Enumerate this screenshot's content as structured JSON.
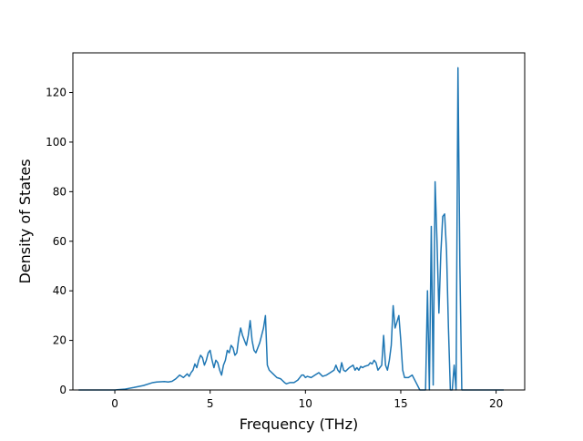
{
  "chart_data": {
    "type": "line",
    "title": "",
    "xlabel": "Frequency (THz)",
    "ylabel": "Density of States",
    "xlim": [
      -2.2,
      21.5
    ],
    "ylim": [
      0,
      136
    ],
    "xticks": [
      0,
      5,
      10,
      15,
      20
    ],
    "yticks": [
      0,
      20,
      40,
      60,
      80,
      100,
      120
    ],
    "grid": false,
    "legend": "none",
    "colors": {
      "line": "#1f77b4",
      "axes": "#000000",
      "background": "#ffffff"
    },
    "series": [
      {
        "x": [
          -1.9,
          -1.0,
          0.0,
          0.5,
          1.0,
          1.5,
          2.0,
          2.2,
          2.4,
          2.6,
          2.8,
          3.0,
          3.2,
          3.4,
          3.6,
          3.8,
          3.9,
          4.0,
          4.1,
          4.2,
          4.3,
          4.4,
          4.5,
          4.6,
          4.7,
          4.8,
          4.9,
          5.0,
          5.1,
          5.2,
          5.3,
          5.4,
          5.5,
          5.6,
          5.7,
          5.8,
          5.9,
          6.0,
          6.1,
          6.2,
          6.3,
          6.4,
          6.5,
          6.6,
          6.7,
          6.8,
          6.9,
          7.0,
          7.1,
          7.2,
          7.3,
          7.4,
          7.5,
          7.6,
          7.7,
          7.8,
          7.9,
          8.0,
          8.1,
          8.3,
          8.5,
          8.7,
          8.9,
          9.0,
          9.2,
          9.4,
          9.6,
          9.7,
          9.8,
          9.9,
          10.0,
          10.1,
          10.3,
          10.5,
          10.7,
          10.9,
          11.1,
          11.3,
          11.5,
          11.6,
          11.7,
          11.8,
          11.9,
          12.0,
          12.1,
          12.3,
          12.5,
          12.6,
          12.7,
          12.8,
          12.9,
          13.0,
          13.1,
          13.3,
          13.4,
          13.5,
          13.6,
          13.7,
          13.8,
          13.9,
          14.0,
          14.1,
          14.2,
          14.3,
          14.4,
          14.5,
          14.6,
          14.7,
          14.9,
          15.0,
          15.1,
          15.2,
          15.4,
          15.6,
          15.8,
          16.0,
          16.1,
          16.2,
          16.3,
          16.4,
          16.5,
          16.6,
          16.7,
          16.8,
          16.9,
          17.0,
          17.1,
          17.2,
          17.3,
          17.4,
          17.5,
          17.6,
          17.7,
          17.8,
          17.9,
          18.0,
          18.1,
          18.2,
          18.3,
          18.5,
          19.0,
          19.5,
          20.0,
          20.4
        ],
        "values": [
          0,
          0,
          0,
          0.3,
          1,
          1.8,
          3,
          3.2,
          3.3,
          3.4,
          3.2,
          3.5,
          4.5,
          6,
          5,
          6.5,
          5.5,
          7,
          8,
          10.5,
          9,
          12,
          14,
          13,
          10,
          12,
          15,
          16,
          12,
          9,
          12,
          11,
          8,
          6,
          10,
          12,
          16,
          15,
          18,
          17,
          14,
          15,
          21,
          25,
          22,
          20,
          18,
          22,
          28,
          20,
          16,
          15,
          17,
          19,
          22,
          25,
          30,
          10,
          8,
          6.5,
          5,
          4.5,
          3,
          2.5,
          3,
          3,
          4,
          5,
          6,
          6,
          5,
          5.5,
          5,
          6,
          7,
          5.5,
          6,
          7,
          8,
          10,
          8,
          7,
          11,
          8,
          7.5,
          9,
          10,
          8,
          9,
          8,
          9.5,
          9,
          9.5,
          10,
          11,
          10.5,
          12,
          11,
          8,
          9,
          10,
          22,
          10,
          8,
          12,
          18,
          34,
          25,
          30,
          20,
          8,
          5,
          5,
          6,
          3,
          0,
          0,
          0,
          0,
          40,
          0,
          66,
          2,
          84,
          60,
          31,
          55,
          70,
          71,
          56,
          25,
          0,
          0,
          10,
          0,
          130,
          50,
          0,
          0,
          0,
          0,
          0,
          0,
          0
        ]
      }
    ]
  }
}
